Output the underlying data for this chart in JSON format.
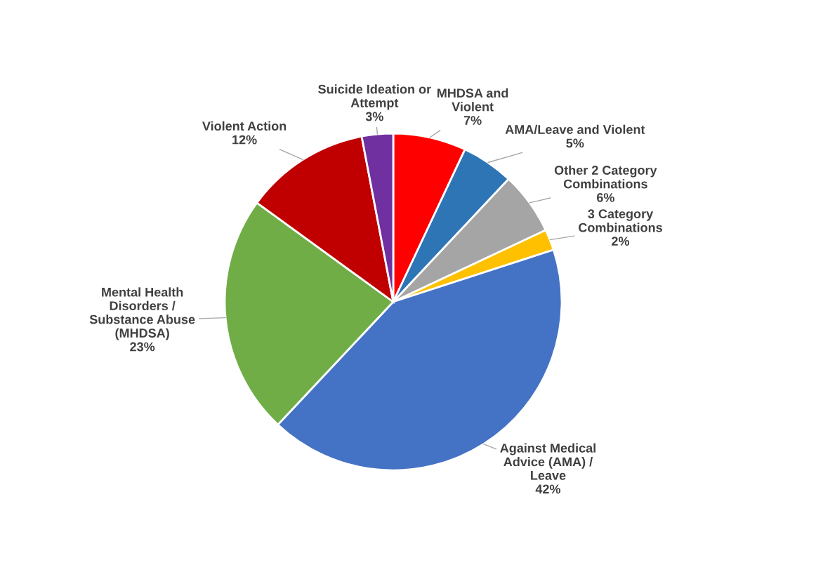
{
  "chart_data": {
    "type": "pie",
    "categories": [
      "MHDSA and\nViolent",
      "AMA/Leave and Violent",
      "Other 2 Category\nCombinations",
      "3 Category\nCombinations",
      "Against Medical\nAdvice (AMA) /\nLeave",
      "Mental Health\nDisorders /\nSubstance Abuse\n(MHDSA)",
      "Violent Action",
      "Suicide Ideation or\nAttempt"
    ],
    "values": [
      7,
      5,
      6,
      2,
      42,
      23,
      12,
      3
    ],
    "value_labels": [
      "7%",
      "5%",
      "6%",
      "2%",
      "42%",
      "23%",
      "12%",
      "3%"
    ],
    "colors": [
      "#ff0000",
      "#2e75b6",
      "#a5a5a5",
      "#ffc000",
      "#4472c4",
      "#70ad47",
      "#c00000",
      "#7030a0"
    ]
  }
}
